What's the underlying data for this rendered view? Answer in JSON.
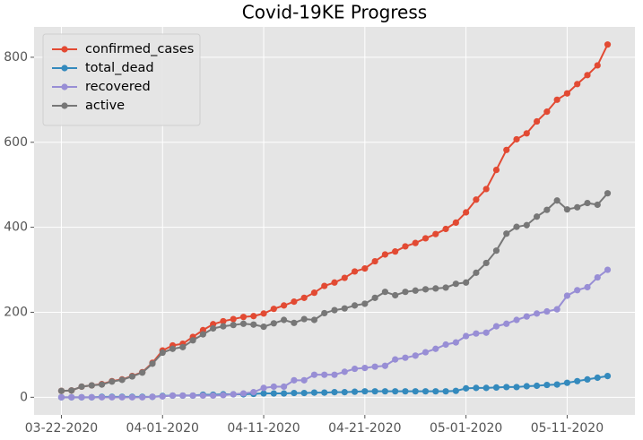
{
  "chart_data": {
    "type": "line",
    "title": "Covid-19KE Progress",
    "x": [
      "2020-03-22",
      "2020-03-23",
      "2020-03-24",
      "2020-03-25",
      "2020-03-26",
      "2020-03-27",
      "2020-03-28",
      "2020-03-29",
      "2020-03-30",
      "2020-03-31",
      "2020-04-01",
      "2020-04-02",
      "2020-04-03",
      "2020-04-04",
      "2020-04-05",
      "2020-04-06",
      "2020-04-07",
      "2020-04-08",
      "2020-04-09",
      "2020-04-10",
      "2020-04-11",
      "2020-04-12",
      "2020-04-13",
      "2020-04-14",
      "2020-04-15",
      "2020-04-16",
      "2020-04-17",
      "2020-04-18",
      "2020-04-19",
      "2020-04-20",
      "2020-04-21",
      "2020-04-22",
      "2020-04-23",
      "2020-04-24",
      "2020-04-25",
      "2020-04-26",
      "2020-04-27",
      "2020-04-28",
      "2020-04-29",
      "2020-04-30",
      "2020-05-01",
      "2020-05-02",
      "2020-05-03",
      "2020-05-04",
      "2020-05-05",
      "2020-05-06",
      "2020-05-07",
      "2020-05-08",
      "2020-05-09",
      "2020-05-10",
      "2020-05-11",
      "2020-05-12",
      "2020-05-13",
      "2020-05-14",
      "2020-05-15"
    ],
    "series": [
      {
        "name": "confirmed_cases",
        "color": "#E24A33",
        "values": [
          15,
          16,
          25,
          28,
          31,
          38,
          42,
          50,
          59,
          81,
          110,
          122,
          126,
          142,
          158,
          172,
          179,
          184,
          189,
          191,
          197,
          208,
          216,
          225,
          234,
          246,
          262,
          270,
          281,
          296,
          303,
          320,
          336,
          343,
          355,
          363,
          374,
          384,
          396,
          411,
          435,
          465,
          490,
          535,
          582,
          607,
          621,
          649,
          672,
          700,
          715,
          737,
          758,
          781,
          830
        ]
      },
      {
        "name": "total_dead",
        "color": "#348ABD",
        "values": [
          0,
          0,
          0,
          0,
          1,
          1,
          1,
          1,
          1,
          1,
          3,
          4,
          4,
          4,
          6,
          6,
          7,
          7,
          7,
          8,
          9,
          9,
          9,
          10,
          10,
          11,
          11,
          12,
          12,
          13,
          14,
          14,
          14,
          14,
          14,
          14,
          14,
          14,
          14,
          15,
          21,
          22,
          22,
          23,
          24,
          24,
          26,
          27,
          29,
          30,
          34,
          38,
          42,
          46,
          50
        ]
      },
      {
        "name": "recovered",
        "color": "#988ED5",
        "values": [
          0,
          0,
          0,
          0,
          0,
          0,
          0,
          0,
          0,
          1,
          2,
          4,
          4,
          4,
          4,
          4,
          5,
          7,
          9,
          12,
          22,
          25,
          25,
          40,
          40,
          53,
          53,
          53,
          60,
          67,
          69,
          72,
          74,
          89,
          93,
          98,
          106,
          114,
          124,
          129,
          144,
          150,
          152,
          167,
          173,
          182,
          190,
          197,
          202,
          207,
          239,
          252,
          259,
          282,
          300
        ]
      },
      {
        "name": "active",
        "color": "#777777",
        "values": [
          15,
          16,
          25,
          28,
          30,
          37,
          41,
          49,
          58,
          79,
          105,
          114,
          118,
          134,
          148,
          162,
          167,
          170,
          173,
          171,
          166,
          174,
          182,
          175,
          184,
          182,
          198,
          205,
          209,
          216,
          220,
          234,
          248,
          240,
          248,
          251,
          254,
          256,
          258,
          267,
          270,
          293,
          316,
          345,
          385,
          401,
          405,
          425,
          441,
          463,
          442,
          447,
          457,
          453,
          480
        ]
      }
    ],
    "xlim": [
      "2020-03-19T07:12Z",
      "2020-05-17T16:48Z"
    ],
    "xticks": [
      {
        "value": "2020-03-22",
        "label": "03-22-2020"
      },
      {
        "value": "2020-04-01",
        "label": "04-01-2020"
      },
      {
        "value": "2020-04-11",
        "label": "04-11-2020"
      },
      {
        "value": "2020-04-21",
        "label": "04-21-2020"
      },
      {
        "value": "2020-05-01",
        "label": "05-01-2020"
      },
      {
        "value": "2020-05-11",
        "label": "05-11-2020"
      }
    ],
    "ylim": [
      -41.5,
      871.5
    ],
    "yticks": [
      0,
      200,
      400,
      600,
      800
    ],
    "grid": true,
    "legend": "upper-left"
  }
}
